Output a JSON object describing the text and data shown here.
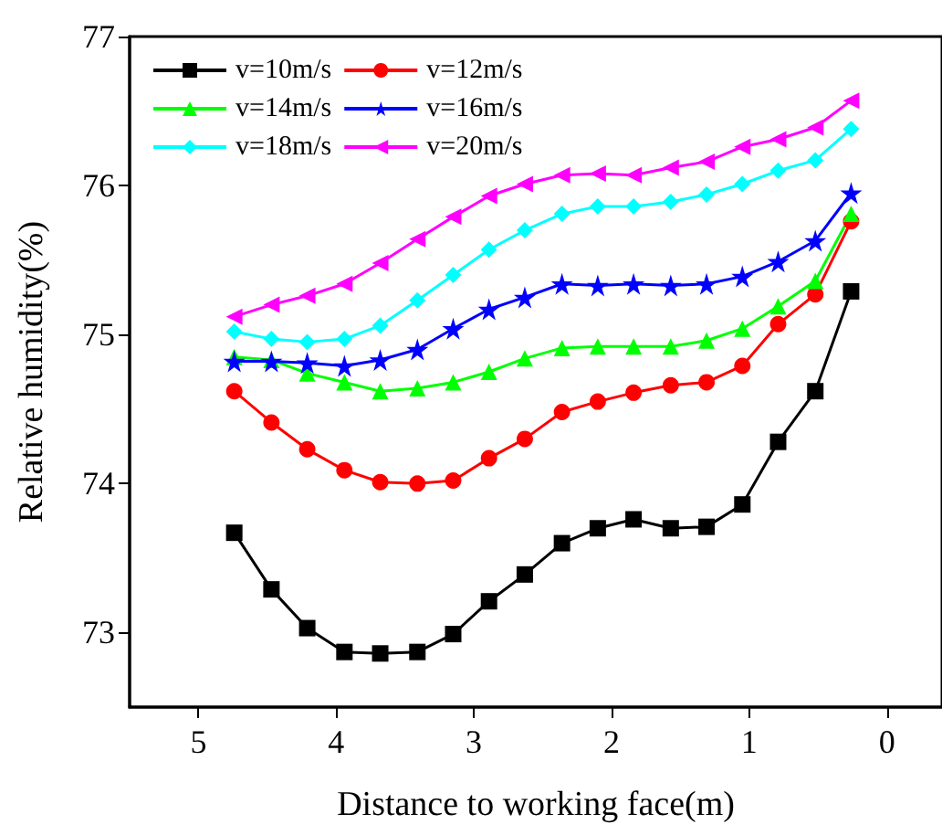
{
  "chart_data": {
    "type": "line",
    "xlabel": "Distance to working face(m)",
    "ylabel": "Relative humidity(%)",
    "x": [
      4.74,
      4.47,
      4.21,
      3.94,
      3.68,
      3.41,
      3.15,
      2.89,
      2.63,
      2.36,
      2.1,
      1.84,
      1.57,
      1.31,
      1.05,
      0.79,
      0.52,
      0.26
    ],
    "series": [
      {
        "name": "v=10m/s",
        "color": "#000000",
        "marker": "square",
        "values": [
          73.67,
          73.29,
          73.03,
          72.87,
          72.86,
          72.87,
          72.99,
          73.21,
          73.39,
          73.6,
          73.7,
          73.76,
          73.7,
          73.71,
          73.86,
          74.28,
          74.62,
          75.29
        ]
      },
      {
        "name": "v=12m/s",
        "color": "#ff0000",
        "marker": "circle",
        "values": [
          74.62,
          74.41,
          74.23,
          74.09,
          74.01,
          74.0,
          74.02,
          74.17,
          74.3,
          74.48,
          74.55,
          74.61,
          74.66,
          74.68,
          74.79,
          75.07,
          75.27,
          75.76
        ]
      },
      {
        "name": "v=14m/s",
        "color": "#00ff00",
        "marker": "triangle",
        "values": [
          74.85,
          74.83,
          74.74,
          74.68,
          74.62,
          74.64,
          74.68,
          74.75,
          74.84,
          74.91,
          74.92,
          74.92,
          74.92,
          74.96,
          75.04,
          75.19,
          75.36,
          75.81
        ]
      },
      {
        "name": "v=16m/s",
        "color": "#0000ff",
        "marker": "star",
        "values": [
          74.82,
          74.82,
          74.81,
          74.79,
          74.83,
          74.9,
          75.04,
          75.17,
          75.25,
          75.34,
          75.33,
          75.34,
          75.33,
          75.34,
          75.39,
          75.49,
          75.63,
          75.95
        ]
      },
      {
        "name": "v=18m/s",
        "color": "#00ffff",
        "marker": "diamond",
        "values": [
          75.02,
          74.97,
          74.95,
          74.97,
          75.06,
          75.23,
          75.4,
          75.57,
          75.7,
          75.81,
          75.86,
          75.86,
          75.89,
          75.94,
          76.01,
          76.1,
          76.17,
          76.38
        ]
      },
      {
        "name": "v=20m/s",
        "color": "#ff00ff",
        "marker": "triangle-left",
        "values": [
          75.12,
          75.2,
          75.26,
          75.34,
          75.48,
          75.64,
          75.79,
          75.93,
          76.01,
          76.07,
          76.08,
          76.07,
          76.12,
          76.16,
          76.26,
          76.31,
          76.39,
          76.57
        ]
      }
    ],
    "xlim": [
      5.5,
      -0.4
    ],
    "xticks": [
      5,
      4,
      3,
      2,
      1,
      0
    ],
    "ylim": [
      72.5,
      77
    ],
    "yticks": [
      73,
      74,
      75,
      76,
      77
    ],
    "grid": false,
    "legend": "top left",
    "line_style": "solid"
  }
}
